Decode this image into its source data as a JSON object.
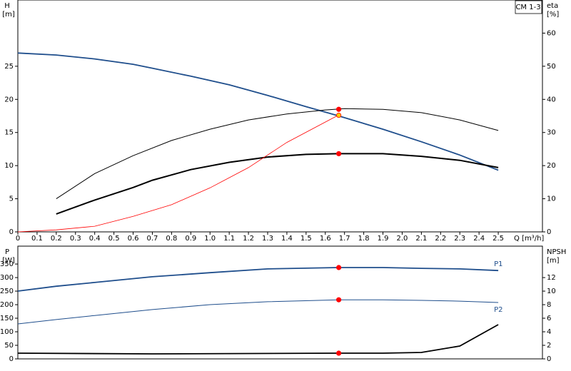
{
  "chart_data": [
    {
      "type": "line",
      "label": "CM 1-3",
      "y_label": "H",
      "y_unit": "[m]",
      "y2_label": "eta",
      "y2_unit": "[%]",
      "x_label": "Q [m³/h]",
      "xlim": [
        0,
        2.73
      ],
      "xticks": [
        0,
        0.1,
        0.2,
        0.3,
        0.4,
        0.5,
        0.6,
        0.7,
        0.8,
        0.9,
        {
          "value": 1,
          "label": "1.0"
        },
        1.1,
        1.2,
        1.3,
        1.4,
        1.5,
        1.6,
        1.7,
        1.8,
        1.9,
        {
          "value": 2,
          "label": "2.0"
        },
        2.1,
        2.2,
        2.3,
        2.4,
        2.5
      ],
      "ylim": [
        0,
        35
      ],
      "yticks": [
        0,
        5,
        10,
        15,
        20,
        25
      ],
      "y2lim": [
        0,
        70
      ],
      "y2ticks": [
        0,
        10,
        20,
        30,
        40,
        50,
        60
      ],
      "grid": false,
      "series": [
        {
          "color": "#1f4e8c",
          "width": 1.8,
          "x": [
            0,
            0.2,
            0.4,
            0.6,
            0.7,
            0.9,
            1.1,
            1.3,
            1.5,
            1.67,
            1.9,
            2.1,
            2.3,
            2.5
          ],
          "values": [
            27.0,
            26.7,
            26.1,
            25.3,
            24.7,
            23.5,
            22.2,
            20.6,
            18.9,
            17.5,
            15.5,
            13.6,
            11.6,
            9.3
          ]
        },
        {
          "color": "#000000",
          "width": 1,
          "axis": "y2",
          "x": [
            0.2,
            0.4,
            0.6,
            0.8,
            1.0,
            1.2,
            1.4,
            1.6,
            1.7,
            1.9,
            2.1,
            2.3,
            2.5
          ],
          "values": [
            10,
            17.6,
            23,
            27.6,
            31,
            33.8,
            35.6,
            36.8,
            37.2,
            37,
            36,
            33.8,
            30.6
          ]
        },
        {
          "color": "#000000",
          "width": 2,
          "axis": "y2",
          "x": [
            0.2,
            0.4,
            0.6,
            0.7,
            0.9,
            1.1,
            1.3,
            1.5,
            1.67,
            1.9,
            2.1,
            2.3,
            2.5
          ],
          "values": [
            5.4,
            9.6,
            13.4,
            15.6,
            18.8,
            21,
            22.6,
            23.4,
            23.6,
            23.6,
            22.8,
            21.6,
            19.4
          ]
        },
        {
          "color": "#ff0000",
          "width": 0.8,
          "axis": "y2",
          "x": [
            0,
            0.2,
            0.4,
            0.6,
            0.8,
            1.0,
            1.2,
            1.4,
            1.67
          ],
          "values": [
            0,
            0.6,
            1.7,
            4.7,
            8.2,
            13.3,
            19.4,
            27,
            35.3
          ]
        }
      ],
      "points": [
        {
          "x": 1.67,
          "y": 37,
          "axis": "y2",
          "color": "#ff0000"
        },
        {
          "x": 1.67,
          "y": 23.6,
          "axis": "y2",
          "color": "#ff0000"
        },
        {
          "x": 1.67,
          "y": 17.6,
          "axis": "y",
          "color": "#ffcc00"
        }
      ]
    },
    {
      "type": "line",
      "y_label": "P",
      "y_unit": "[W]",
      "y2_label": "NPSH",
      "y2_unit": "[m]",
      "xlim": [
        0,
        2.73
      ],
      "ylim": [
        0,
        416
      ],
      "yticks": [
        0,
        50,
        100,
        150,
        200,
        250,
        300,
        350
      ],
      "y2lim": [
        0,
        16.64
      ],
      "y2ticks": [
        0,
        2,
        4,
        6,
        8,
        10,
        12
      ],
      "grid": false,
      "series": [
        {
          "name": "P1",
          "color": "#1f4e8c",
          "width": 1.8,
          "x": [
            0,
            0.2,
            0.4,
            0.7,
            1.0,
            1.3,
            1.67,
            1.9,
            2.1,
            2.3,
            2.5
          ],
          "values": [
            250,
            268,
            282,
            303,
            318,
            332,
            337,
            337,
            334,
            332,
            326
          ]
        },
        {
          "name": "P2",
          "color": "#1f4e8c",
          "width": 1,
          "x": [
            0,
            0.2,
            0.4,
            0.7,
            1.0,
            1.3,
            1.67,
            1.9,
            2.1,
            2.3,
            2.5
          ],
          "values": [
            129,
            145,
            160,
            182,
            200,
            211,
            218,
            218,
            216,
            213,
            208
          ]
        },
        {
          "color": "#000000",
          "width": 1.8,
          "axis": "y2",
          "x": [
            0,
            0.7,
            1.67,
            1.9,
            2.1,
            2.3,
            2.5
          ],
          "values": [
            0.84,
            0.74,
            0.84,
            0.84,
            0.95,
            1.9,
            5.05
          ]
        }
      ],
      "points": [
        {
          "x": 1.67,
          "y": 337,
          "axis": "y",
          "color": "#ff0000"
        },
        {
          "x": 1.67,
          "y": 218,
          "axis": "y",
          "color": "#ff0000"
        },
        {
          "x": 1.67,
          "y": 0.84,
          "axis": "y2",
          "color": "#ff0000"
        }
      ]
    }
  ]
}
